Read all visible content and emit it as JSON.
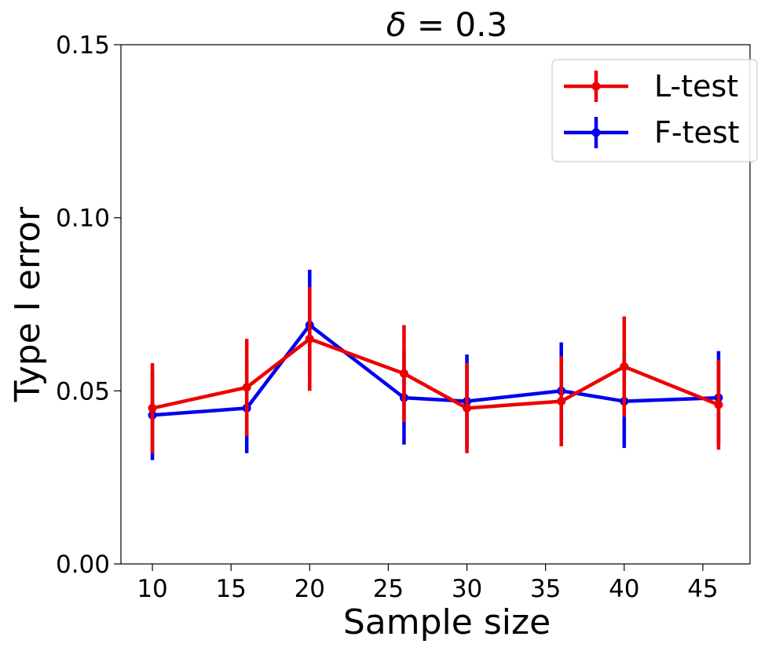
{
  "chart_data": {
    "type": "line",
    "title_symbol": "δ",
    "title_value": " = 0.3",
    "xlabel": "Sample size",
    "ylabel": "Type I error",
    "xlim": [
      8,
      48
    ],
    "ylim": [
      0,
      0.15
    ],
    "x_ticks": [
      10,
      15,
      20,
      25,
      30,
      35,
      40,
      45
    ],
    "x_tick_labels": [
      "10",
      "15",
      "20",
      "25",
      "30",
      "35",
      "40",
      "45"
    ],
    "y_ticks": [
      0,
      0.05,
      0.1,
      0.15
    ],
    "y_tick_labels": [
      "0.00",
      "0.05",
      "0.10",
      "0.15"
    ],
    "legend_position": "top-right",
    "x": [
      10,
      16,
      20,
      26,
      30,
      36,
      40,
      46
    ],
    "series": [
      {
        "name": "L-test",
        "color": "#ee0000",
        "values": [
          0.045,
          0.051,
          0.065,
          0.055,
          0.045,
          0.047,
          0.057,
          0.046
        ],
        "errors": [
          0.013,
          0.014,
          0.015,
          0.014,
          0.013,
          0.013,
          0.0145,
          0.013
        ]
      },
      {
        "name": "F-test",
        "color": "#0000ee",
        "values": [
          0.043,
          0.045,
          0.069,
          0.048,
          0.047,
          0.05,
          0.047,
          0.048
        ],
        "errors": [
          0.013,
          0.013,
          0.016,
          0.0135,
          0.0135,
          0.014,
          0.0135,
          0.0135
        ]
      }
    ]
  }
}
